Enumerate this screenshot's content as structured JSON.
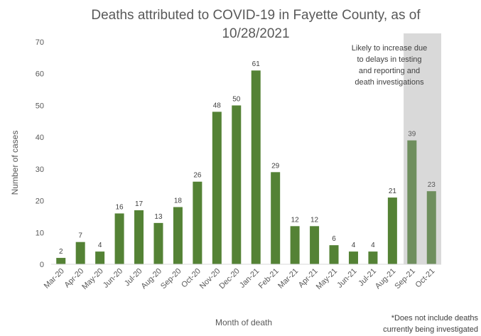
{
  "chart_data": {
    "type": "bar",
    "title_line1": "Deaths attributed to COVID-19 in Fayette County, as of",
    "title_line2": "10/28/2021",
    "xlabel": "Month of death",
    "ylabel": "Number of cases",
    "ylim": [
      0,
      70
    ],
    "yticks": [
      "0",
      "10",
      "20",
      "30",
      "40",
      "50",
      "60",
      "70"
    ],
    "categories": [
      "Mar-20",
      "Apr-20",
      "May-20",
      "Jun-20",
      "Jul-20",
      "Aug-20",
      "Sep-20",
      "Oct-20",
      "Nov-20",
      "Dec-20",
      "Jan-21",
      "Feb-21",
      "Mar-21",
      "Apr-21",
      "May-21",
      "Jun-21",
      "Jul-21",
      "Aug-21",
      "Sep-21",
      "Oct-21"
    ],
    "values": [
      2,
      7,
      4,
      16,
      17,
      13,
      18,
      26,
      48,
      50,
      61,
      29,
      12,
      12,
      6,
      4,
      4,
      21,
      39,
      23
    ],
    "value_labels": [
      "2",
      "7",
      "4",
      "16",
      "17",
      "13",
      "18",
      "26",
      "48",
      "50",
      "61",
      "29",
      "12",
      "12",
      "6",
      "4",
      "4",
      "21",
      "39",
      "23"
    ],
    "provisional_categories": [
      "Sep-21",
      "Oct-21"
    ],
    "colors": {
      "bar": "#548235",
      "bar_provisional": "#6f8f5e",
      "shade": "#d9d9d9"
    },
    "grid": false,
    "legend": "none",
    "annotation": "Likely to increase due to delays in testing and reporting and death investigations",
    "annotation_lines": [
      "Likely to increase due",
      "to delays in testing",
      "and reporting and",
      "death investigations"
    ],
    "footnote_lines": [
      "*Does not include deaths",
      "currently being investigated"
    ]
  }
}
